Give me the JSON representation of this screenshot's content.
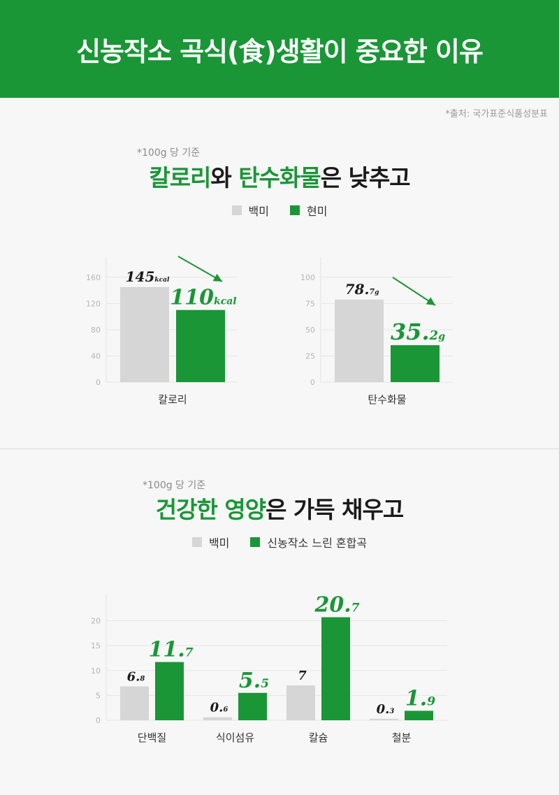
{
  "header": {
    "title": "신농작소 곡식(食)생활이 중요한 이유"
  },
  "source": "*출처: 국가표준식품성분표",
  "section1": {
    "note": "*100g 당 기준",
    "title": {
      "hl1": "칼로리",
      "mid": "와 ",
      "hl2": "탄수화물",
      "rest": "은 낮추고"
    },
    "legend": [
      "백미",
      "현미"
    ]
  },
  "section2": {
    "note": "*100g 당 기준",
    "title": {
      "hl1": "건강한 영양",
      "rest": "은 가득 채우고"
    },
    "legend": [
      "백미",
      "신농작소 느린 혼합곡"
    ]
  },
  "colors": {
    "green": "#1a9637",
    "gray": "#d6d6d6",
    "dark": "#1a1a1a"
  },
  "chart_data": [
    {
      "type": "bar",
      "categories": [
        "칼로리"
      ],
      "series": [
        {
          "name": "백미",
          "values": [
            145
          ],
          "labels": [
            {
              "int": "145",
              "dec": "",
              "unit": "kcal"
            }
          ]
        },
        {
          "name": "현미",
          "values": [
            110
          ],
          "labels": [
            {
              "int": "110",
              "dec": "",
              "unit": "kcal"
            }
          ]
        }
      ],
      "yticks": [
        0,
        40,
        80,
        120,
        160
      ],
      "ylim": [
        0,
        180
      ],
      "grid": true
    },
    {
      "type": "bar",
      "categories": [
        "탄수화물"
      ],
      "series": [
        {
          "name": "백미",
          "values": [
            78.7
          ],
          "labels": [
            {
              "int": "78.",
              "dec": "7",
              "unit": "g"
            }
          ]
        },
        {
          "name": "현미",
          "values": [
            35.2
          ],
          "labels": [
            {
              "int": "35.",
              "dec": "2",
              "unit": "g"
            }
          ]
        }
      ],
      "yticks": [
        0,
        25,
        50,
        75,
        100
      ],
      "ylim": [
        0,
        112.5
      ],
      "grid": true
    },
    {
      "type": "bar",
      "categories": [
        "단백질",
        "식이섬유",
        "칼슘",
        "철분"
      ],
      "series": [
        {
          "name": "백미",
          "values": [
            6.8,
            0.6,
            7,
            0.3
          ],
          "labels": [
            {
              "int": "6.",
              "dec": "8"
            },
            {
              "int": "0.",
              "dec": "6"
            },
            {
              "int": "7",
              "dec": ""
            },
            {
              "int": "0.",
              "dec": "3"
            }
          ]
        },
        {
          "name": "신농작소 느린 혼합곡",
          "values": [
            11.7,
            5.5,
            20.7,
            1.9
          ],
          "labels": [
            {
              "int": "11.",
              "dec": "7"
            },
            {
              "int": "5.",
              "dec": "5"
            },
            {
              "int": "20.",
              "dec": "7"
            },
            {
              "int": "1.",
              "dec": "9"
            }
          ]
        }
      ],
      "yticks": [
        0,
        5,
        10,
        15,
        20
      ],
      "ylim": [
        0,
        24
      ],
      "grid": true
    }
  ]
}
